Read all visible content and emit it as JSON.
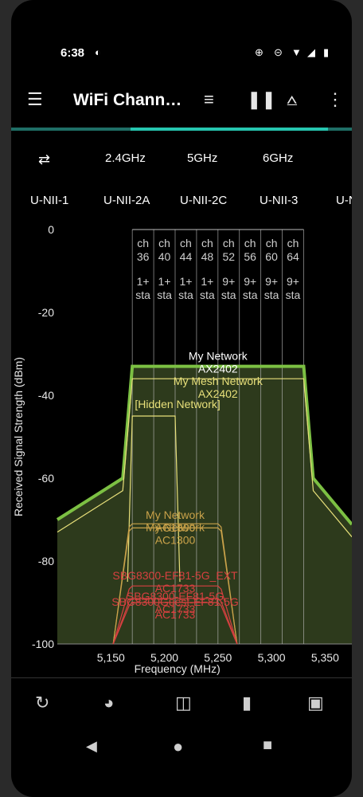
{
  "status": {
    "time": "6:38"
  },
  "app": {
    "title": "WiFi Chann…"
  },
  "bands": [
    "2.4GHz",
    "5GHz",
    "6GHz"
  ],
  "subbands": [
    "U-NII-1",
    "U-NII-2A",
    "U-NII-2C",
    "U-NII-3",
    "U-N"
  ],
  "icons": {
    "menu": "menu-icon",
    "filter": "filter-icon",
    "pause": "pause-icon",
    "share": "share-icon",
    "more": "more-vert-icon",
    "swap": "swap-icon"
  },
  "colors": {
    "accent": "#26c6b0",
    "my_network": "#7cc043",
    "hidden": "#e8e07a",
    "ac1300": "#c9a24a",
    "sbg": "#d64040",
    "channel_line": "#bdbdbd"
  },
  "chart_data": {
    "type": "area",
    "xlabel": "Frequency (MHz)",
    "ylabel": "Received Signal Strength (dBm)",
    "xlim": [
      5100,
      5375
    ],
    "ylim": [
      -100,
      0
    ],
    "yticks": [
      0,
      -20,
      -40,
      -60,
      -80,
      -100
    ],
    "ytick_labels": [
      "0",
      "-20",
      "-40",
      "-60",
      "-80",
      "-100"
    ],
    "xticks": [
      5150,
      5200,
      5250,
      5300,
      5350
    ],
    "xtick_labels": [
      "5,150",
      "5,200",
      "5,250",
      "5,300",
      "5,350"
    ],
    "channels": [
      {
        "label": "ch\n36",
        "freq": 5180,
        "sta": "1+\nsta"
      },
      {
        "label": "ch\n40",
        "freq": 5200,
        "sta": "1+\nsta"
      },
      {
        "label": "ch\n44",
        "freq": 5220,
        "sta": "1+\nsta"
      },
      {
        "label": "ch\n48",
        "freq": 5240,
        "sta": "1+\nsta"
      },
      {
        "label": "ch\n52",
        "freq": 5260,
        "sta": "9+\nsta"
      },
      {
        "label": "ch\n56",
        "freq": 5280,
        "sta": "9+\nsta"
      },
      {
        "label": "ch\n60",
        "freq": 5300,
        "sta": "9+\nsta"
      },
      {
        "label": "ch\n64",
        "freq": 5320,
        "sta": "9+\nsta"
      }
    ],
    "networks": [
      {
        "name": "My Network",
        "sub": "AX2402",
        "color": "#7cc043",
        "center": 5250,
        "width": 160,
        "signal": -33,
        "shape": "wide"
      },
      {
        "name": "My Mesh Network",
        "sub": "AX2402",
        "color": "#e8e07a",
        "center": 5250,
        "width": 160,
        "signal": -36,
        "shape": "wide"
      },
      {
        "name": "[Hidden Network]",
        "sub": "",
        "color": "#e8e07a",
        "center": 5190,
        "width": 40,
        "signal": -45,
        "shape": "narrow"
      },
      {
        "name": "My Network",
        "sub": "AC1300",
        "color": "#c9a24a",
        "center": 5210,
        "width": 80,
        "signal": -71,
        "shape": "mid"
      },
      {
        "name": "My Network",
        "sub": "AC1300",
        "color": "#c9a24a",
        "center": 5210,
        "width": 80,
        "signal": -72,
        "shape": "mid"
      },
      {
        "name": "SBG8300-EF81-5G_EXT",
        "sub": "AC1733",
        "color": "#d64040",
        "center": 5210,
        "width": 80,
        "signal": -86,
        "shape": "mid"
      },
      {
        "name": "SBG8300-EF81-5G",
        "sub": "AC1733",
        "color": "#d64040",
        "center": 5210,
        "width": 80,
        "signal": -89,
        "shape": "mid"
      },
      {
        "name": "SBG8300Guest-EF81-5G",
        "sub": "AC1733",
        "color": "#d64040",
        "center": 5210,
        "width": 80,
        "signal": -90,
        "shape": "mid"
      }
    ]
  }
}
